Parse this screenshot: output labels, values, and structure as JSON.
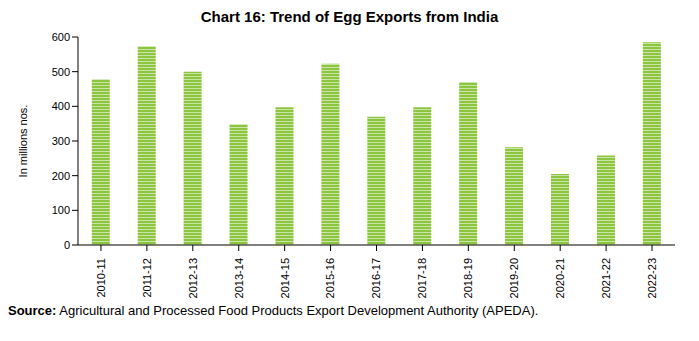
{
  "chart_data": {
    "type": "bar",
    "title": "Chart 16: Trend of Egg Exports from India",
    "y_label": "In millions nos.",
    "source": "Source: Agricultural and Processed Food Products Export Development Authority (APEDA).",
    "categories": [
      "2010-11",
      "2011-12",
      "2012-13",
      "2013-14",
      "2014-15",
      "2015-16",
      "2016-17",
      "2017-18",
      "2018-19",
      "2019-20",
      "2020-21",
      "2021-22",
      "2022-23"
    ],
    "values": [
      478,
      573,
      500,
      348,
      397,
      523,
      370,
      397,
      470,
      282,
      205,
      258,
      585
    ],
    "color": "#8cc63e",
    "ylim": [
      0,
      600
    ],
    "yticks": [
      0,
      100,
      200,
      300,
      400,
      500,
      600
    ],
    "grid": false
  }
}
